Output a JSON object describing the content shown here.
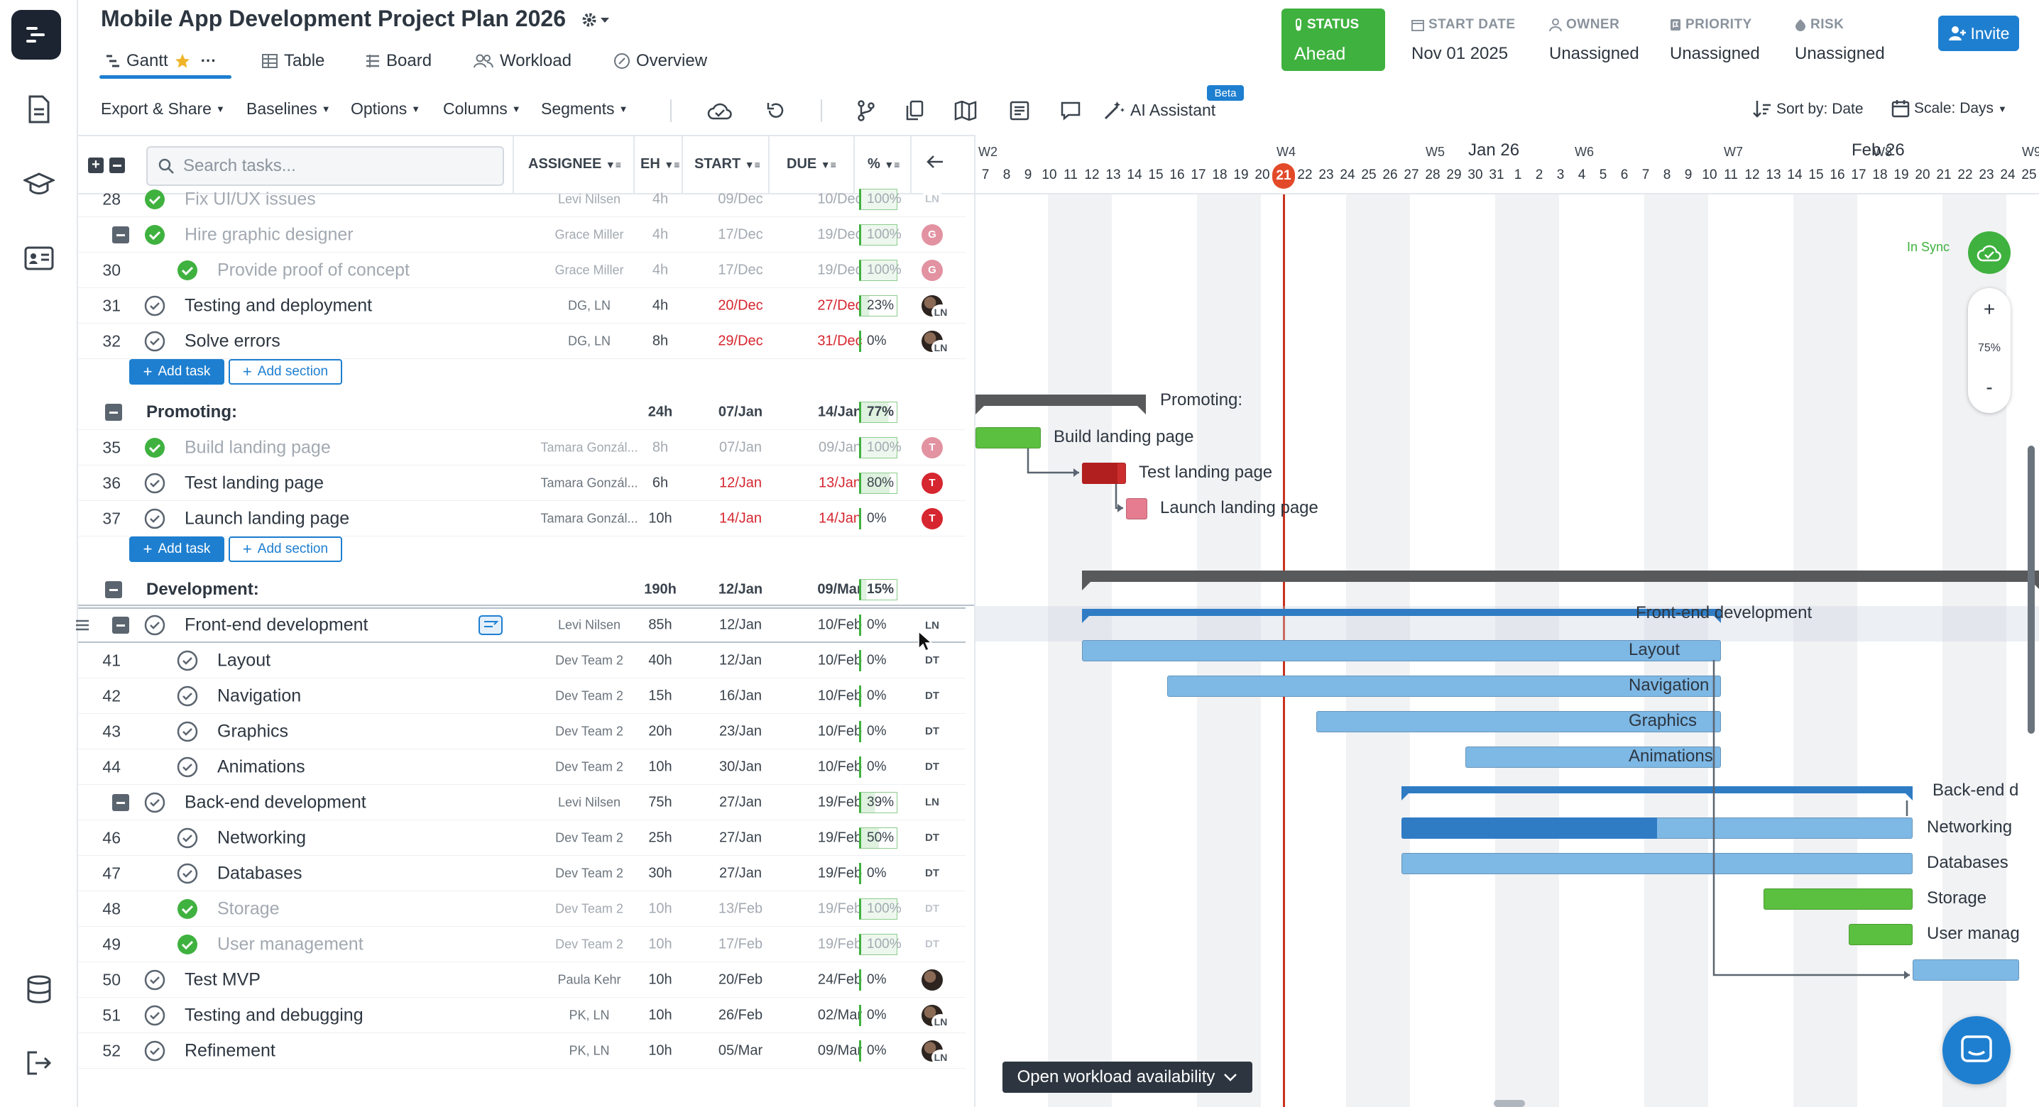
{
  "project": {
    "title": "Mobile App Development Project Plan 2026"
  },
  "tabs": [
    {
      "label": "Gantt"
    },
    {
      "label": "Table"
    },
    {
      "label": "Board"
    },
    {
      "label": "Workload"
    },
    {
      "label": "Overview"
    }
  ],
  "status": {
    "label": "STATUS",
    "value": "Ahead"
  },
  "stats": [
    {
      "label": "START DATE",
      "value": "Nov 01 2025"
    },
    {
      "label": "OWNER",
      "value": "Unassigned"
    },
    {
      "label": "PRIORITY",
      "value": "Unassigned"
    },
    {
      "label": "RISK",
      "value": "Unassigned"
    }
  ],
  "invite": {
    "label": "Invite"
  },
  "toolbar": {
    "export": "Export & Share",
    "baselines": "Baselines",
    "options": "Options",
    "columns": "Columns",
    "segments": "Segments",
    "ai": "AI Assistant",
    "beta": "Beta",
    "sort": "Sort by: Date",
    "scale": "Scale: Days"
  },
  "grid": {
    "search_placeholder": "Search tasks...",
    "columns": {
      "assignee": "ASSIGNEE",
      "eh": "EH",
      "start": "START",
      "due": "DUE",
      "pct": "%"
    }
  },
  "rows": [
    {
      "num": "28",
      "name": "Fix UI/UX issues",
      "assignee": "Levi Nilsen",
      "eh": "4h",
      "start": "09/Dec",
      "due": "10/Dec",
      "pct": "100%",
      "avatar": "LN"
    },
    {
      "num": "",
      "name": "Hire graphic designer",
      "assignee": "Grace Miller",
      "eh": "4h",
      "start": "17/Dec",
      "due": "19/Dec",
      "pct": "100%",
      "avatar": "G"
    },
    {
      "num": "30",
      "name": "Provide proof of concept",
      "assignee": "Grace Miller",
      "eh": "4h",
      "start": "17/Dec",
      "due": "19/Dec",
      "pct": "100%",
      "avatar": "G"
    },
    {
      "num": "31",
      "name": "Testing and deployment",
      "assignee": "DG, LN",
      "eh": "4h",
      "start": "20/Dec",
      "due": "27/Dec",
      "pct": "23%",
      "avatar": "LN"
    },
    {
      "num": "32",
      "name": "Solve errors",
      "assignee": "DG, LN",
      "eh": "8h",
      "start": "29/Dec",
      "due": "31/Dec",
      "pct": "0%",
      "avatar": "LN"
    },
    {
      "name": "Promoting:",
      "eh": "24h",
      "start": "07/Jan",
      "due": "14/Jan",
      "pct": "77%"
    },
    {
      "num": "35",
      "name": "Build landing page",
      "assignee": "Tamara Gonzál...",
      "eh": "8h",
      "start": "07/Jan",
      "due": "09/Jan",
      "pct": "100%",
      "avatar": "T"
    },
    {
      "num": "36",
      "name": "Test landing page",
      "assignee": "Tamara Gonzál...",
      "eh": "6h",
      "start": "12/Jan",
      "due": "13/Jan",
      "pct": "80%",
      "avatar": "T"
    },
    {
      "num": "37",
      "name": "Launch landing page",
      "assignee": "Tamara Gonzál...",
      "eh": "10h",
      "start": "14/Jan",
      "due": "14/Jan",
      "pct": "0%",
      "avatar": "T"
    },
    {
      "name": "Development:",
      "eh": "190h",
      "start": "12/Jan",
      "due": "09/Mar",
      "pct": "15%"
    },
    {
      "num": "",
      "name": "Front-end development",
      "assignee": "Levi Nilsen",
      "eh": "85h",
      "start": "12/Jan",
      "due": "10/Feb",
      "pct": "0%",
      "avatar": "LN"
    },
    {
      "num": "41",
      "name": "Layout",
      "assignee": "Dev Team 2",
      "eh": "40h",
      "start": "12/Jan",
      "due": "10/Feb",
      "pct": "0%",
      "avatar": "DT"
    },
    {
      "num": "42",
      "name": "Navigation",
      "assignee": "Dev Team 2",
      "eh": "15h",
      "start": "16/Jan",
      "due": "10/Feb",
      "pct": "0%",
      "avatar": "DT"
    },
    {
      "num": "43",
      "name": "Graphics",
      "assignee": "Dev Team 2",
      "eh": "20h",
      "start": "23/Jan",
      "due": "10/Feb",
      "pct": "0%",
      "avatar": "DT"
    },
    {
      "num": "44",
      "name": "Animations",
      "assignee": "Dev Team 2",
      "eh": "10h",
      "start": "30/Jan",
      "due": "10/Feb",
      "pct": "0%",
      "avatar": "DT"
    },
    {
      "num": "",
      "name": "Back-end development",
      "assignee": "Levi Nilsen",
      "eh": "75h",
      "start": "27/Jan",
      "due": "19/Feb",
      "pct": "39%",
      "avatar": "LN"
    },
    {
      "num": "46",
      "name": "Networking",
      "assignee": "Dev Team 2",
      "eh": "25h",
      "start": "27/Jan",
      "due": "19/Feb",
      "pct": "50%",
      "avatar": "DT"
    },
    {
      "num": "47",
      "name": "Databases",
      "assignee": "Dev Team 2",
      "eh": "30h",
      "start": "27/Jan",
      "due": "19/Feb",
      "pct": "0%",
      "avatar": "DT"
    },
    {
      "num": "48",
      "name": "Storage",
      "assignee": "Dev Team 2",
      "eh": "10h",
      "start": "13/Feb",
      "due": "19/Feb",
      "pct": "100%",
      "avatar": "DT"
    },
    {
      "num": "49",
      "name": "User management",
      "assignee": "Dev Team 2",
      "eh": "10h",
      "start": "17/Feb",
      "due": "19/Feb",
      "pct": "100%",
      "avatar": "DT"
    },
    {
      "num": "50",
      "name": "Test MVP",
      "assignee": "Paula Kehr",
      "eh": "10h",
      "start": "20/Feb",
      "due": "24/Feb",
      "pct": "0%"
    },
    {
      "num": "51",
      "name": "Testing and debugging",
      "assignee": "PK, LN",
      "eh": "10h",
      "start": "26/Feb",
      "due": "02/Mar",
      "pct": "0%",
      "avatar": "LN"
    },
    {
      "num": "52",
      "name": "Refinement",
      "assignee": "PK, LN",
      "eh": "10h",
      "start": "05/Mar",
      "due": "09/Mar",
      "pct": "0%",
      "avatar": "LN"
    }
  ],
  "buttons": {
    "add_task": "Add task",
    "add_section": "Add section"
  },
  "gantt": {
    "weeks": [
      "W2",
      "W4",
      "W5",
      "W6",
      "W7",
      "W8",
      "W9"
    ],
    "months": [
      "Jan 26",
      "Feb 26"
    ],
    "days": [
      "7",
      "8",
      "9",
      "10",
      "11",
      "12",
      "13",
      "14",
      "15",
      "16",
      "17",
      "18",
      "19",
      "20",
      "21",
      "22",
      "23",
      "24",
      "25",
      "26",
      "27",
      "28",
      "29",
      "30",
      "31",
      "1",
      "2",
      "3",
      "4",
      "5",
      "6",
      "7",
      "8",
      "9",
      "10",
      "11",
      "12",
      "13",
      "14",
      "15",
      "16",
      "17",
      "18",
      "19",
      "20",
      "21",
      "22",
      "23",
      "24",
      "25"
    ],
    "today": "21",
    "bar_labels": [
      "Promoting:",
      "Build landing page",
      "Test landing page",
      "Launch landing page",
      "Front-end development",
      "Layout",
      "Navigation",
      "Graphics",
      "Animations",
      "Back-end d",
      "Networking",
      "Databases",
      "Storage",
      "User manag"
    ],
    "sync": "In Sync",
    "zoom": "75%",
    "zoom_in": "+",
    "zoom_out": "-",
    "workload_btn": "Open workload availability"
  },
  "colors": {
    "accent": "#1e7fd0",
    "green": "#3fb13f",
    "red": "#d6262f",
    "bar_blue": "#7eb8e5",
    "summary": "#58595b"
  }
}
